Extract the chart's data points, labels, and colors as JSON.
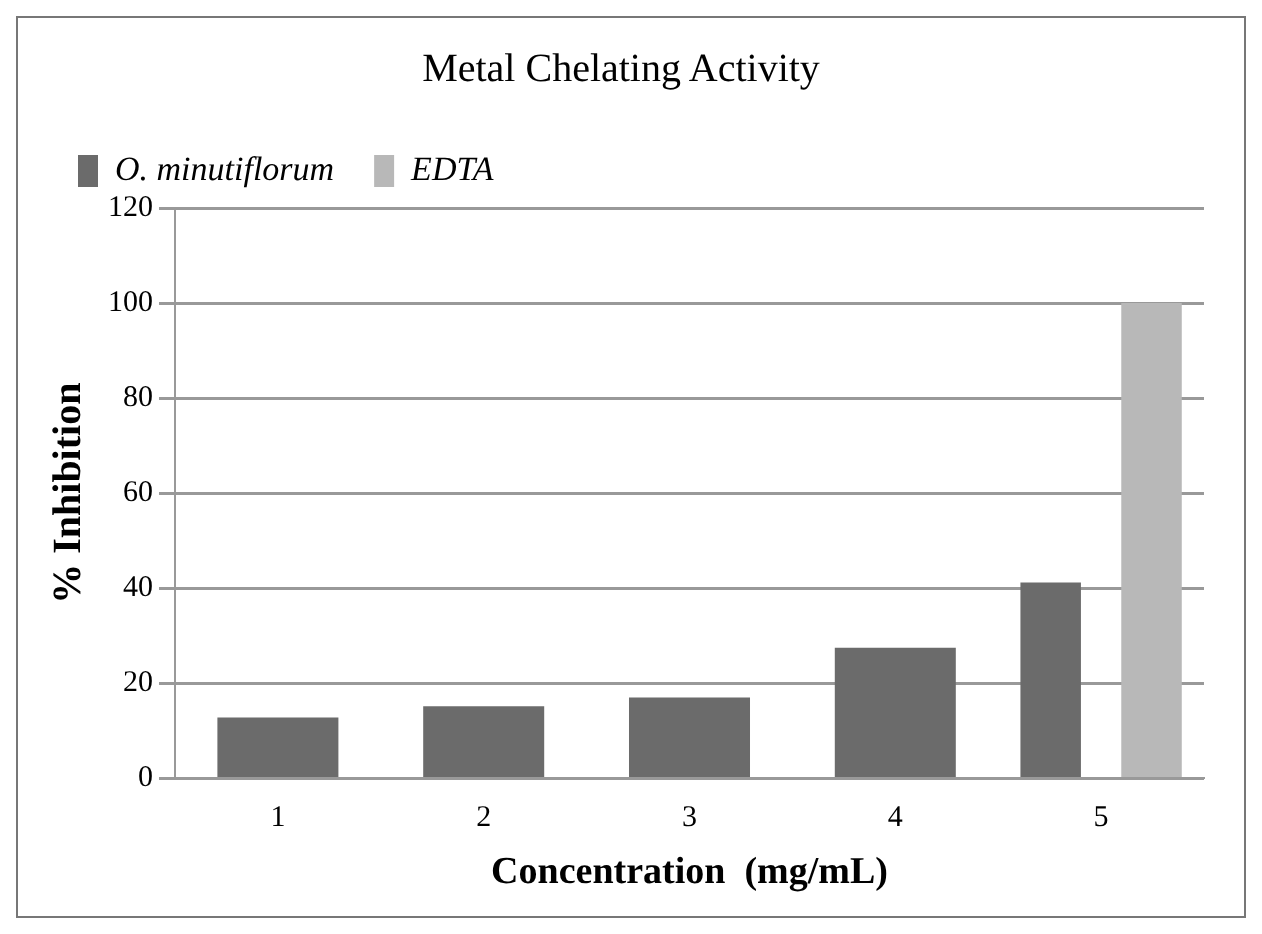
{
  "chart_data": {
    "type": "bar",
    "title": "Metal Chelating Activity",
    "xlabel": "Concentration  (mg/mL)",
    "ylabel": "% Inhibition",
    "categories": [
      "1",
      "2",
      "3",
      "4",
      "5"
    ],
    "series": [
      {
        "name": "O. minutiflorum",
        "color": "#6b6b6b",
        "values": [
          12.8,
          15.2,
          17,
          27.5,
          41.2
        ]
      },
      {
        "name": "EDTA",
        "color": "#b8b8b8",
        "values": [
          null,
          null,
          null,
          null,
          100
        ]
      }
    ],
    "ylim": [
      0,
      120
    ],
    "yticks": [
      0,
      20,
      40,
      60,
      80,
      100,
      120
    ],
    "grid": "y",
    "legend": "top left"
  }
}
